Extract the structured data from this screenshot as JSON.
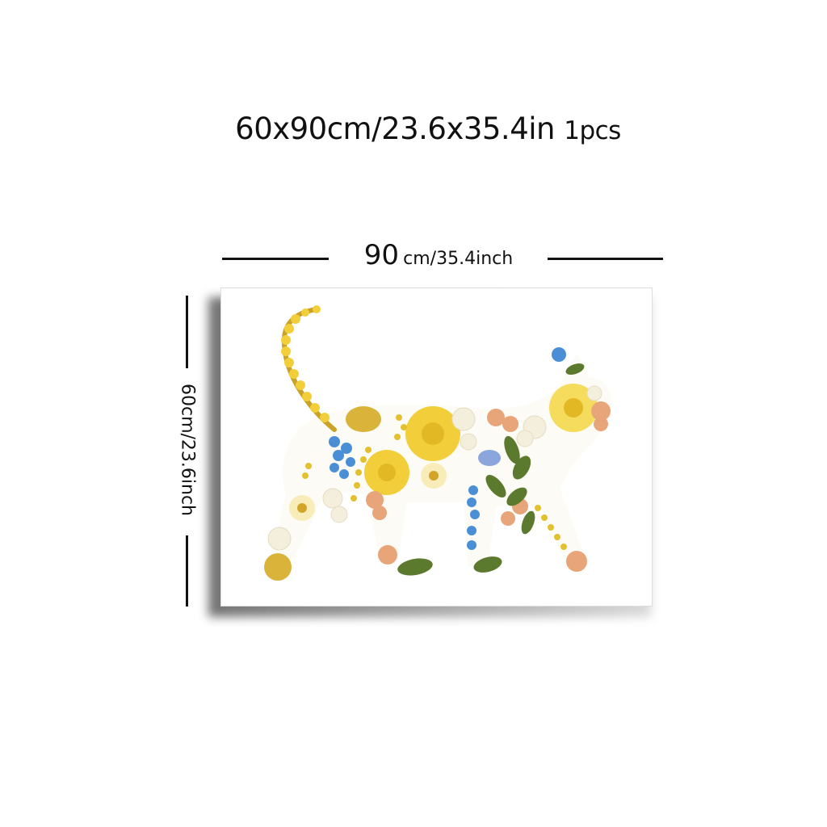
{
  "header": {
    "size_text": "60x90cm/23.6x35.4in",
    "quantity_text": "1pcs"
  },
  "dimensions": {
    "width_number": "90",
    "width_unit": "cm/35.4inch",
    "height_text": "60cm/23.6inch"
  },
  "artwork": {
    "subject": "cat silhouette made of pressed flowers",
    "colors": {
      "yellow": "#f2cf3a",
      "gold": "#c9a227",
      "blue": "#4a8fd6",
      "peach": "#e9a57a",
      "cream": "#f4eedc",
      "leaf": "#5c7a2e"
    }
  }
}
